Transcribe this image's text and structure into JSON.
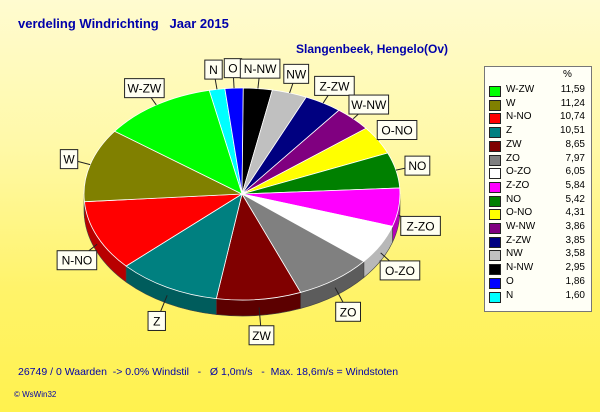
{
  "header": {
    "title": "verdeling Windrichting   Jaar 2015",
    "location": "Slangenbeek, Hengelo(Ov)"
  },
  "legend": {
    "heading": "%"
  },
  "chart_data": {
    "type": "pie",
    "slices": [
      {
        "name": "W-ZW",
        "value": 11.59,
        "color": "#00ff00"
      },
      {
        "name": "W",
        "value": 11.24,
        "color": "#808000"
      },
      {
        "name": "N-NO",
        "value": 10.74,
        "color": "#ff0000"
      },
      {
        "name": "Z",
        "value": 10.51,
        "color": "#008080"
      },
      {
        "name": "ZW",
        "value": 8.65,
        "color": "#800000"
      },
      {
        "name": "ZO",
        "value": 7.97,
        "color": "#808080"
      },
      {
        "name": "O-ZO",
        "value": 6.05,
        "color": "#ffffff"
      },
      {
        "name": "Z-ZO",
        "value": 5.84,
        "color": "#ff00ff"
      },
      {
        "name": "NO",
        "value": 5.42,
        "color": "#008000"
      },
      {
        "name": "O-NO",
        "value": 4.31,
        "color": "#ffff00"
      },
      {
        "name": "W-NW",
        "value": 3.86,
        "color": "#800080"
      },
      {
        "name": "Z-ZW",
        "value": 3.85,
        "color": "#000080"
      },
      {
        "name": "NW",
        "value": 3.58,
        "color": "#c0c0c0"
      },
      {
        "name": "N-NW",
        "value": 2.95,
        "color": "#000000"
      },
      {
        "name": "O",
        "value": 1.86,
        "color": "#0000ff"
      },
      {
        "name": "N",
        "value": 1.6,
        "color": "#00ffff"
      }
    ],
    "pie_order": [
      "N",
      "O",
      "N-NW",
      "NW",
      "Z-ZW",
      "W-NW",
      "O-NO",
      "NO",
      "Z-ZO",
      "O-ZO",
      "ZO",
      "ZW",
      "Z",
      "N-NO",
      "W",
      "W-ZW"
    ],
    "legend_placement": "right"
  },
  "footer": {
    "stats": "26749 / 0 Waarden  -> 0.0% Windstil   -   Ø 1,0m/s   -  Max. 18,6m/s = Windstoten",
    "credit": "© WsWin32"
  }
}
